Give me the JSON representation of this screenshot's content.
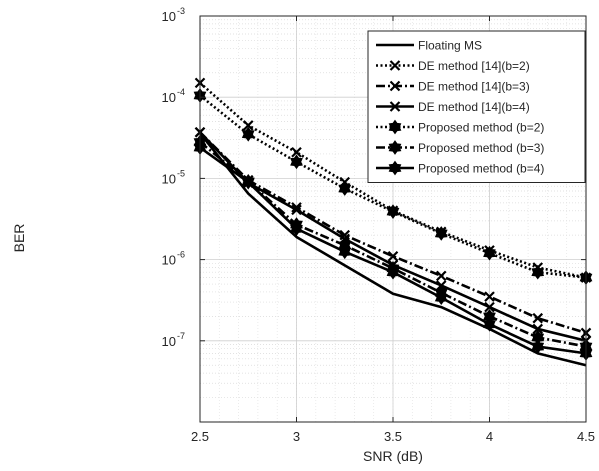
{
  "chart_data": {
    "type": "line",
    "title": "",
    "xlabel": "SNR (dB)",
    "ylabel": "BER",
    "xlim": [
      2.5,
      4.5
    ],
    "ylim": [
      1e-08,
      0.001
    ],
    "yscale": "log",
    "grid": true,
    "minor_grid": true,
    "legend_position": "top-right",
    "x": [
      2.5,
      2.75,
      3,
      3.25,
      3.5,
      3.75,
      4,
      4.25,
      4.5
    ],
    "x_ticks": [
      2.5,
      3,
      3.5,
      4,
      4.5
    ],
    "x_tick_labels": [
      "2.5",
      "3",
      "3.5",
      "4",
      "4.5"
    ],
    "y_ticks": [
      1e-07,
      1e-06,
      1e-05,
      0.0001,
      0.001
    ],
    "y_tick_labels": [
      {
        "base": "10",
        "exp": "-7"
      },
      {
        "base": "10",
        "exp": "-6"
      },
      {
        "base": "10",
        "exp": "-5"
      },
      {
        "base": "10",
        "exp": "-4"
      },
      {
        "base": "10",
        "exp": "-3"
      }
    ],
    "series": [
      {
        "name": "Floating MS",
        "line": "solid",
        "marker": "none",
        "color": "#000000",
        "values": [
          3.6e-05,
          6.5e-06,
          1.9e-06,
          8.5e-07,
          3.8e-07,
          2.6e-07,
          1.4e-07,
          7e-08,
          5e-08
        ]
      },
      {
        "name": "DE method [14](b=2)",
        "line": "dotted",
        "marker": "x",
        "color": "#000000",
        "values": [
          0.00015,
          4.5e-05,
          2.1e-05,
          9e-06,
          4e-06,
          2.2e-06,
          1.3e-06,
          8e-07,
          6e-07
        ]
      },
      {
        "name": "DE method [14](b=3)",
        "line": "dashdot",
        "marker": "x",
        "color": "#000000",
        "values": [
          3.7e-05,
          9.5e-06,
          4.4e-06,
          2e-06,
          1.1e-06,
          6.3e-07,
          3.5e-07,
          1.9e-07,
          1.25e-07
        ]
      },
      {
        "name": "DE method [14](b=4)",
        "line": "solid",
        "marker": "x",
        "color": "#000000",
        "values": [
          3.7e-05,
          8.8e-06,
          4.1e-06,
          1.8e-06,
          8.6e-07,
          4.8e-07,
          2.6e-07,
          1.4e-07,
          1e-07
        ]
      },
      {
        "name": "Proposed method (b=2)",
        "line": "dotted",
        "marker": "hexagram",
        "color": "#000000",
        "values": [
          0.000105,
          3.5e-05,
          1.6e-05,
          7.5e-06,
          3.9e-06,
          2.1e-06,
          1.2e-06,
          7e-07,
          6e-07
        ]
      },
      {
        "name": "Proposed method (b=3)",
        "line": "dashdot",
        "marker": "hexagram",
        "color": "#000000",
        "values": [
          2.8e-05,
          9.2e-06,
          2.7e-06,
          1.5e-06,
          7.8e-07,
          3.9e-07,
          2e-07,
          1.1e-07,
          8.5e-08
        ]
      },
      {
        "name": "Proposed method (b=4)",
        "line": "solid",
        "marker": "hexagram",
        "color": "#000000",
        "values": [
          2.4e-05,
          9e-06,
          2.4e-06,
          1.25e-06,
          7e-07,
          3.4e-07,
          1.6e-07,
          8.5e-08,
          7e-08
        ]
      }
    ]
  }
}
